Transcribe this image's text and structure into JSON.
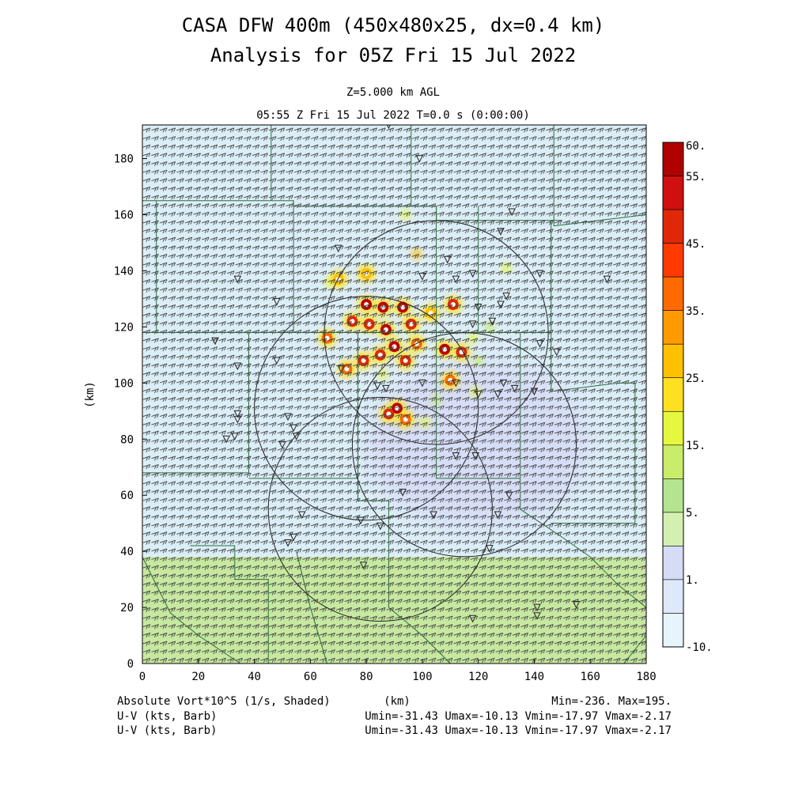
{
  "header": {
    "title_line1": "CASA DFW 400m (450x480x25, dx=0.4 km)",
    "title_line2": "Analysis for 05Z Fri 15 Jul 2022",
    "level": "Z=5.000 km AGL",
    "valid_time": "05:55 Z Fri 15 Jul 2022    T=0.0 s (0:00:00)"
  },
  "footer": {
    "field1": "Absolute Vort*10^5 (1/s, Shaded)",
    "xunit": "(km)",
    "minmax": "Min=-236. Max=195.",
    "field2": "U-V (kts, Barb)",
    "range2": "Umin=-31.43 Umax=-10.13 Vmin=-17.97 Vmax=-2.17",
    "field3": "U-V (kts, Barb)",
    "range3": "Umin=-31.43 Umax=-10.13 Vmin=-17.97 Vmax=-2.17"
  },
  "colors": {
    "map_lines": "#2e6b3a",
    "barbs": "#444444",
    "background_field": "#dbeef8",
    "south_band": "#c6e8a0"
  },
  "chart_data": {
    "type": "heatmap",
    "xlabel": "(km)",
    "ylabel": "(km)",
    "xlim": [
      0,
      180
    ],
    "ylim": [
      0,
      192
    ],
    "xticks": [
      "0",
      "20",
      "40",
      "60",
      "80",
      "100",
      "120",
      "140",
      "160",
      "180"
    ],
    "yticks": [
      "0",
      "20",
      "40",
      "60",
      "80",
      "100",
      "120",
      "140",
      "160",
      "180"
    ],
    "colorbar": {
      "labels": [
        "60.",
        "55.",
        "45.",
        "35.",
        "25.",
        "15.",
        "5.",
        "1.",
        "-10."
      ],
      "colors": [
        "#b00000",
        "#d01010",
        "#e02808",
        "#ff3a00",
        "#ff6a00",
        "#ff9a00",
        "#ffc000",
        "#ffe020",
        "#e6f740",
        "#c9ec6a",
        "#b4e490",
        "#d2f0b0",
        "#d6dcf6",
        "#dde8f8",
        "#e6f4fc"
      ]
    },
    "radar_rings": [
      {
        "cx": 85,
        "cy": 55,
        "r": 40
      },
      {
        "cx": 80,
        "cy": 91,
        "r": 40
      },
      {
        "cx": 115,
        "cy": 78,
        "r": 40
      },
      {
        "cx": 105,
        "cy": 118,
        "r": 40
      }
    ],
    "vorticity_cores": [
      {
        "x": 80,
        "y": 128,
        "v": 55
      },
      {
        "x": 86,
        "y": 127,
        "v": 60
      },
      {
        "x": 93,
        "y": 127,
        "v": 55
      },
      {
        "x": 75,
        "y": 122,
        "v": 45
      },
      {
        "x": 81,
        "y": 121,
        "v": 50
      },
      {
        "x": 87,
        "y": 119,
        "v": 55
      },
      {
        "x": 96,
        "y": 121,
        "v": 50
      },
      {
        "x": 90,
        "y": 113,
        "v": 60
      },
      {
        "x": 85,
        "y": 110,
        "v": 50
      },
      {
        "x": 79,
        "y": 108,
        "v": 45
      },
      {
        "x": 73,
        "y": 105,
        "v": 40
      },
      {
        "x": 66,
        "y": 116,
        "v": 40
      },
      {
        "x": 94,
        "y": 108,
        "v": 45
      },
      {
        "x": 108,
        "y": 112,
        "v": 55
      },
      {
        "x": 114,
        "y": 111,
        "v": 50
      },
      {
        "x": 111,
        "y": 128,
        "v": 45
      },
      {
        "x": 110,
        "y": 101,
        "v": 40
      },
      {
        "x": 91,
        "y": 91,
        "v": 55
      },
      {
        "x": 88,
        "y": 89,
        "v": 45
      },
      {
        "x": 94,
        "y": 87,
        "v": 40
      },
      {
        "x": 70,
        "y": 137,
        "v": 30
      },
      {
        "x": 80,
        "y": 139,
        "v": 30
      },
      {
        "x": 98,
        "y": 114,
        "v": 35
      },
      {
        "x": 103,
        "y": 125,
        "v": 30
      }
    ],
    "weak_cells": [
      {
        "x": 98,
        "y": 146,
        "v": 25
      },
      {
        "x": 94,
        "y": 160,
        "v": 20
      },
      {
        "x": 130,
        "y": 141,
        "v": 20
      },
      {
        "x": 119,
        "y": 97,
        "v": 20
      },
      {
        "x": 101,
        "y": 86,
        "v": 15
      },
      {
        "x": 124,
        "y": 120,
        "v": 10
      },
      {
        "x": 120,
        "y": 108,
        "v": 10
      },
      {
        "x": 105,
        "y": 94,
        "v": 10
      },
      {
        "x": 67,
        "y": 136,
        "v": 15
      },
      {
        "x": 86,
        "y": 103,
        "v": 15
      },
      {
        "x": 118,
        "y": 116,
        "v": 15
      }
    ],
    "weak_negative_region": {
      "x": 120,
      "y": 78,
      "rx": 40,
      "ry": 30
    },
    "south_band_top_y": 38
  }
}
